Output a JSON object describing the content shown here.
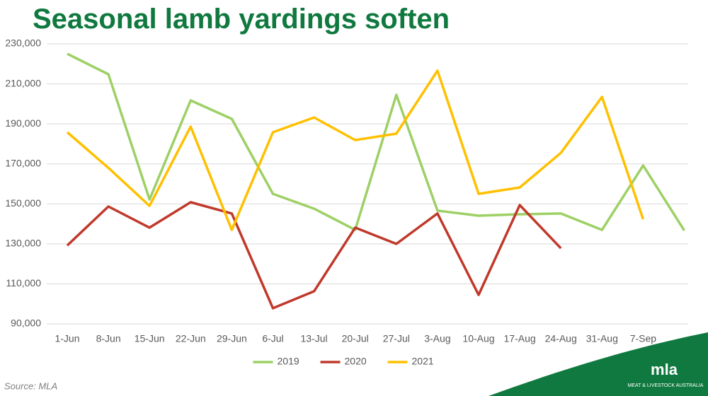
{
  "chart_data": {
    "type": "line",
    "title": "Seasonal lamb yardings soften",
    "categories": [
      "1-Jun",
      "8-Jun",
      "15-Jun",
      "22-Jun",
      "29-Jun",
      "6-Jul",
      "13-Jul",
      "20-Jul",
      "27-Jul",
      "3-Aug",
      "10-Aug",
      "17-Aug",
      "24-Aug",
      "31-Aug",
      "7-Sep",
      null
    ],
    "series": [
      {
        "name": "2019",
        "color": "#9dd065",
        "values": [
          225000,
          214800,
          152200,
          201700,
          192500,
          155000,
          147600,
          137000,
          204500,
          146600,
          144100,
          144800,
          145200,
          137000,
          169200,
          136700
        ]
      },
      {
        "name": "2020",
        "color": "#c0392b",
        "values": [
          129200,
          148700,
          138100,
          150800,
          145200,
          97800,
          106300,
          138100,
          130000,
          145200,
          104500,
          149400,
          127800,
          null,
          null,
          null
        ]
      },
      {
        "name": "2021",
        "color": "#ffc000",
        "values": [
          185800,
          168000,
          149000,
          188600,
          137000,
          185800,
          193200,
          181900,
          185100,
          216600,
          155000,
          158200,
          175500,
          203500,
          142300,
          null
        ]
      }
    ],
    "ylim": [
      90000,
      230000
    ],
    "yticks": [
      {
        "value": 90000,
        "label": "90,000"
      },
      {
        "value": 110000,
        "label": "110,000"
      },
      {
        "value": 130000,
        "label": "130,000"
      },
      {
        "value": 150000,
        "label": "150,000"
      },
      {
        "value": 170000,
        "label": "170,000"
      },
      {
        "value": 190000,
        "label": "190,000"
      },
      {
        "value": 210000,
        "label": "210,000"
      },
      {
        "value": 230000,
        "label": "230,000"
      }
    ],
    "grid": true,
    "legend": "bottom",
    "source": "Source: MLA"
  },
  "logo": {
    "name": "mla",
    "tagline": "MEAT & LIVESTOCK AUSTRALIA"
  }
}
